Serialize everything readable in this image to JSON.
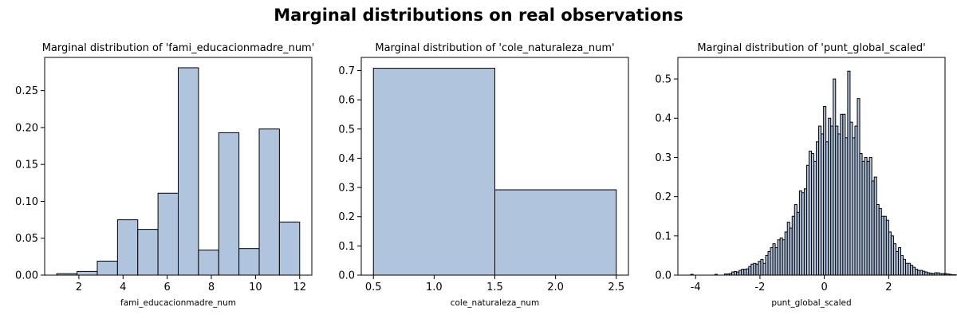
{
  "suptitle": "Marginal distributions on real observations",
  "colors": {
    "bar_fill": "#b0c4de",
    "bar_edge": "#000000"
  },
  "chart_data": [
    {
      "type": "bar",
      "subtype": "histogram",
      "title": "Marginal distribution of 'fami_educacionmadre_num'",
      "xlabel": "fami_educacionmadre_num",
      "ylabel": "",
      "xlim": [
        0.45,
        12.55
      ],
      "ylim": [
        0,
        0.295
      ],
      "xticks": [
        2,
        4,
        6,
        8,
        10,
        12
      ],
      "yticks": [
        0.0,
        0.05,
        0.1,
        0.15,
        0.2,
        0.25
      ],
      "ytick_labels": [
        "0.00",
        "0.05",
        "0.10",
        "0.15",
        "0.20",
        "0.25"
      ],
      "bin_edges": [
        1.0,
        1.917,
        2.833,
        3.75,
        4.667,
        5.583,
        6.5,
        7.417,
        8.333,
        9.25,
        10.167,
        11.083,
        12.0
      ],
      "values": [
        0.002,
        0.005,
        0.019,
        0.075,
        0.062,
        0.111,
        0.281,
        0.034,
        0.193,
        0.036,
        0.198,
        0.072
      ],
      "grid": false
    },
    {
      "type": "bar",
      "subtype": "histogram",
      "title": "Marginal distribution of 'cole_naturaleza_num'",
      "xlabel": "cole_naturaleza_num",
      "ylabel": "",
      "xlim": [
        0.4,
        2.6
      ],
      "ylim": [
        0,
        0.745
      ],
      "xticks": [
        0.5,
        1.0,
        1.5,
        2.0,
        2.5
      ],
      "yticks": [
        0.0,
        0.1,
        0.2,
        0.3,
        0.4,
        0.5,
        0.6,
        0.7
      ],
      "ytick_labels": [
        "0.0",
        "0.1",
        "0.2",
        "0.3",
        "0.4",
        "0.5",
        "0.6",
        "0.7"
      ],
      "bin_edges": [
        0.5,
        1.5,
        2.5
      ],
      "values": [
        0.708,
        0.292
      ],
      "grid": false
    },
    {
      "type": "bar",
      "subtype": "histogram",
      "title": "Marginal distribution of 'punt_global_scaled'",
      "xlabel": "punt_global_scaled",
      "ylabel": "",
      "xlim": [
        -4.55,
        3.75
      ],
      "ylim": [
        0,
        0.555
      ],
      "xticks": [
        -4,
        -2,
        0,
        2
      ],
      "yticks": [
        0.0,
        0.1,
        0.2,
        0.3,
        0.4,
        0.5
      ],
      "ytick_labels": [
        "0.0",
        "0.1",
        "0.2",
        "0.3",
        "0.4",
        "0.5"
      ],
      "bin_start": -4.15,
      "bin_width": 0.075,
      "values": [
        0.002,
        0.0,
        0.0,
        0.0,
        0.0,
        0.0,
        0.0,
        0.0,
        0.0,
        0.0,
        0.002,
        0.0,
        0.0,
        0.0,
        0.003,
        0.003,
        0.004,
        0.008,
        0.009,
        0.008,
        0.012,
        0.015,
        0.015,
        0.016,
        0.022,
        0.028,
        0.03,
        0.028,
        0.035,
        0.04,
        0.03,
        0.05,
        0.06,
        0.07,
        0.08,
        0.07,
        0.09,
        0.095,
        0.09,
        0.11,
        0.135,
        0.12,
        0.15,
        0.18,
        0.16,
        0.215,
        0.21,
        0.22,
        0.28,
        0.316,
        0.31,
        0.29,
        0.34,
        0.38,
        0.36,
        0.43,
        0.34,
        0.4,
        0.38,
        0.5,
        0.38,
        0.36,
        0.41,
        0.41,
        0.35,
        0.52,
        0.39,
        0.35,
        0.38,
        0.45,
        0.31,
        0.29,
        0.3,
        0.29,
        0.3,
        0.24,
        0.25,
        0.18,
        0.17,
        0.15,
        0.15,
        0.14,
        0.11,
        0.1,
        0.08,
        0.06,
        0.07,
        0.05,
        0.04,
        0.03,
        0.03,
        0.025,
        0.02,
        0.015,
        0.012,
        0.012,
        0.01,
        0.008,
        0.006,
        0.005,
        0.004,
        0.006,
        0.006,
        0.004,
        0.004,
        0.004,
        0.003,
        0.002,
        0.001,
        0.001
      ],
      "grid": false
    }
  ]
}
